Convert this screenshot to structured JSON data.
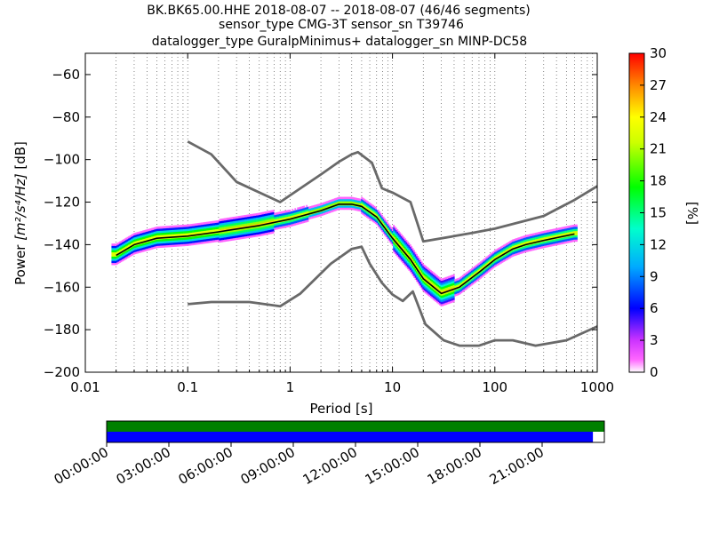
{
  "chart_data": {
    "type": "heatmap",
    "title_lines": [
      "BK.BK65.00.HHE   2018-08-07 -- 2018-08-07  (46/46 segments)",
      "sensor_type CMG-3T sensor_sn T39746",
      "datalogger_type GuralpMinimus+ datalogger_sn MINP-DC58"
    ],
    "xlabel": "Period [s]",
    "ylabel_prefix": "Power ",
    "ylabel_math": "[m²/s⁴/Hz]",
    "ylabel_suffix": " [dB]",
    "xscale": "log",
    "xlim": [
      0.01,
      1000
    ],
    "ylim": [
      -200,
      -50
    ],
    "xticks": [
      0.01,
      0.1,
      1,
      10,
      100,
      1000
    ],
    "xtick_labels": [
      "0.01",
      "0.1",
      "1",
      "10",
      "100",
      "1000"
    ],
    "yticks": [
      -200,
      -180,
      -160,
      -140,
      -120,
      -100,
      -80,
      -60
    ],
    "ytick_labels": [
      "−200",
      "−180",
      "−160",
      "−140",
      "−120",
      "−100",
      "−80",
      "−60"
    ],
    "grid": "dotted vertical gridlines",
    "colorbar": {
      "label": "[%]",
      "range": [
        0,
        30
      ],
      "ticks": [
        0,
        3,
        6,
        9,
        12,
        15,
        18,
        21,
        24,
        27,
        30
      ],
      "tick_labels": [
        "0",
        "3",
        "6",
        "9",
        "12",
        "15",
        "18",
        "21",
        "24",
        "27",
        "30"
      ]
    },
    "series": [
      {
        "name": "",
        "color": "#696969",
        "x": [
          0.1,
          0.17,
          0.3,
          0.8,
          1.26,
          2.0,
          3.0,
          4.0,
          4.6,
          6.3,
          7.9,
          10,
          15,
          20,
          40,
          60,
          100,
          300,
          600,
          1000
        ],
        "y": [
          -91.5,
          -97.5,
          -110.5,
          -120,
          -113.5,
          -107,
          -101,
          -97.5,
          -96.5,
          -101.5,
          -113.5,
          -115.5,
          -120,
          -138.5,
          -136,
          -134.5,
          -132.5,
          -126.5,
          -119,
          -112.5
        ]
      },
      {
        "name": "",
        "color": "#696969",
        "x": [
          0.1,
          0.17,
          0.4,
          0.8,
          1.26,
          2.5,
          4.0,
          5.0,
          6.0,
          7.9,
          10,
          12.6,
          15.8,
          21,
          31.6,
          45,
          70,
          100,
          150,
          250,
          500,
          1000
        ],
        "y": [
          -168,
          -167,
          -167,
          -169,
          -163,
          -149,
          -142,
          -141,
          -149,
          -158,
          -163.5,
          -166.5,
          -162,
          -177.5,
          -185,
          -187.5,
          -187.5,
          -185,
          -185,
          -187.5,
          -185,
          -178.5
        ]
      },
      {
        "name": "",
        "color": "#000000",
        "x": [
          0.02,
          0.03,
          0.05,
          0.1,
          0.2,
          0.5,
          1,
          2,
          3,
          4,
          5,
          7,
          10,
          15,
          20,
          30,
          45,
          70,
          100,
          150,
          200,
          300,
          600
        ],
        "y": [
          -145,
          -140,
          -137,
          -136,
          -134,
          -131,
          -128,
          -124,
          -121,
          -121,
          -122,
          -127,
          -137,
          -147,
          -156,
          -163,
          -160,
          -153,
          -147,
          -142,
          -140,
          -138,
          -135
        ]
      }
    ],
    "segment_rows": [
      {
        "color": "#008000",
        "coverage": [
          0,
          1
        ]
      },
      {
        "color": "#0000ff",
        "coverage": [
          0,
          0.977
        ]
      }
    ],
    "time_ticks": [
      "00:00:00",
      "03:00:00",
      "06:00:00",
      "09:00:00",
      "12:00:00",
      "15:00:00",
      "18:00:00",
      "21:00:00"
    ]
  }
}
